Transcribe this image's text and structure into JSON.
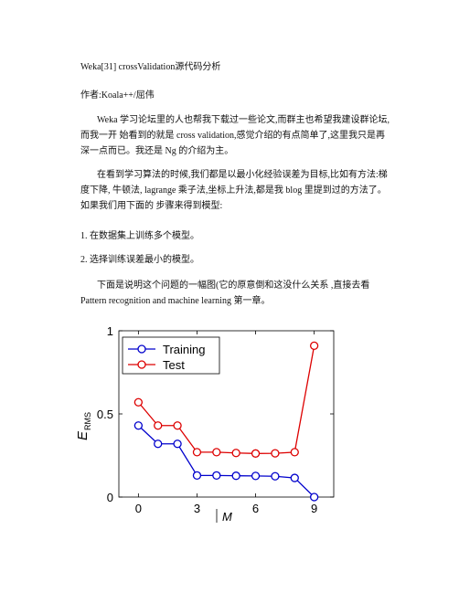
{
  "doc": {
    "title": "Weka[31] crossValidation源代码分析",
    "author": "作者:Koala++/屈伟",
    "p1": "Weka 学习论坛里的人也帮我下载过一些论文,而群主也希望我建设群论坛,而我一开 始看到的就是 cross validation,感觉介绍的有点简单了,这里我只是再深一点而已。我还是 Ng 的介绍为主。",
    "p2": "在看到学习算法的时候,我们都是以最小化经验误差为目标,比如有方法:梯度下降, 牛顿法, lagrange 乘子法,坐标上升法,都是我 blog 里提到过的方法了。如果我们用下面的 步骤来得到模型:",
    "item1": "1. 在数据集上训练多个模型。",
    "item2": "2. 选择训练误差最小的模型。",
    "p3": "下面是说明这个问题的一幅图(它的原意倒和这没什么关系 ,直接去看 Pattern recognition and machine learning 第一章。"
  },
  "chart_data": {
    "type": "line",
    "x": [
      0,
      1,
      2,
      3,
      4,
      5,
      6,
      7,
      8,
      9
    ],
    "series": [
      {
        "name": "Training",
        "color": "#0000cc",
        "values": [
          0.43,
          0.32,
          0.32,
          0.13,
          0.13,
          0.128,
          0.127,
          0.125,
          0.115,
          0.0
        ]
      },
      {
        "name": "Test",
        "color": "#dd0000",
        "values": [
          0.57,
          0.43,
          0.43,
          0.27,
          0.27,
          0.265,
          0.262,
          0.263,
          0.27,
          0.91
        ]
      }
    ],
    "xlabel": "M",
    "ylabel_main": "E",
    "ylabel_sub": "RMS",
    "xticks": [
      "0",
      "3",
      "6",
      "9"
    ],
    "yticks": [
      "0",
      "0.5",
      "1"
    ],
    "xlim": [
      -1,
      10
    ],
    "ylim": [
      0,
      1
    ],
    "legend_position": "top-left"
  }
}
